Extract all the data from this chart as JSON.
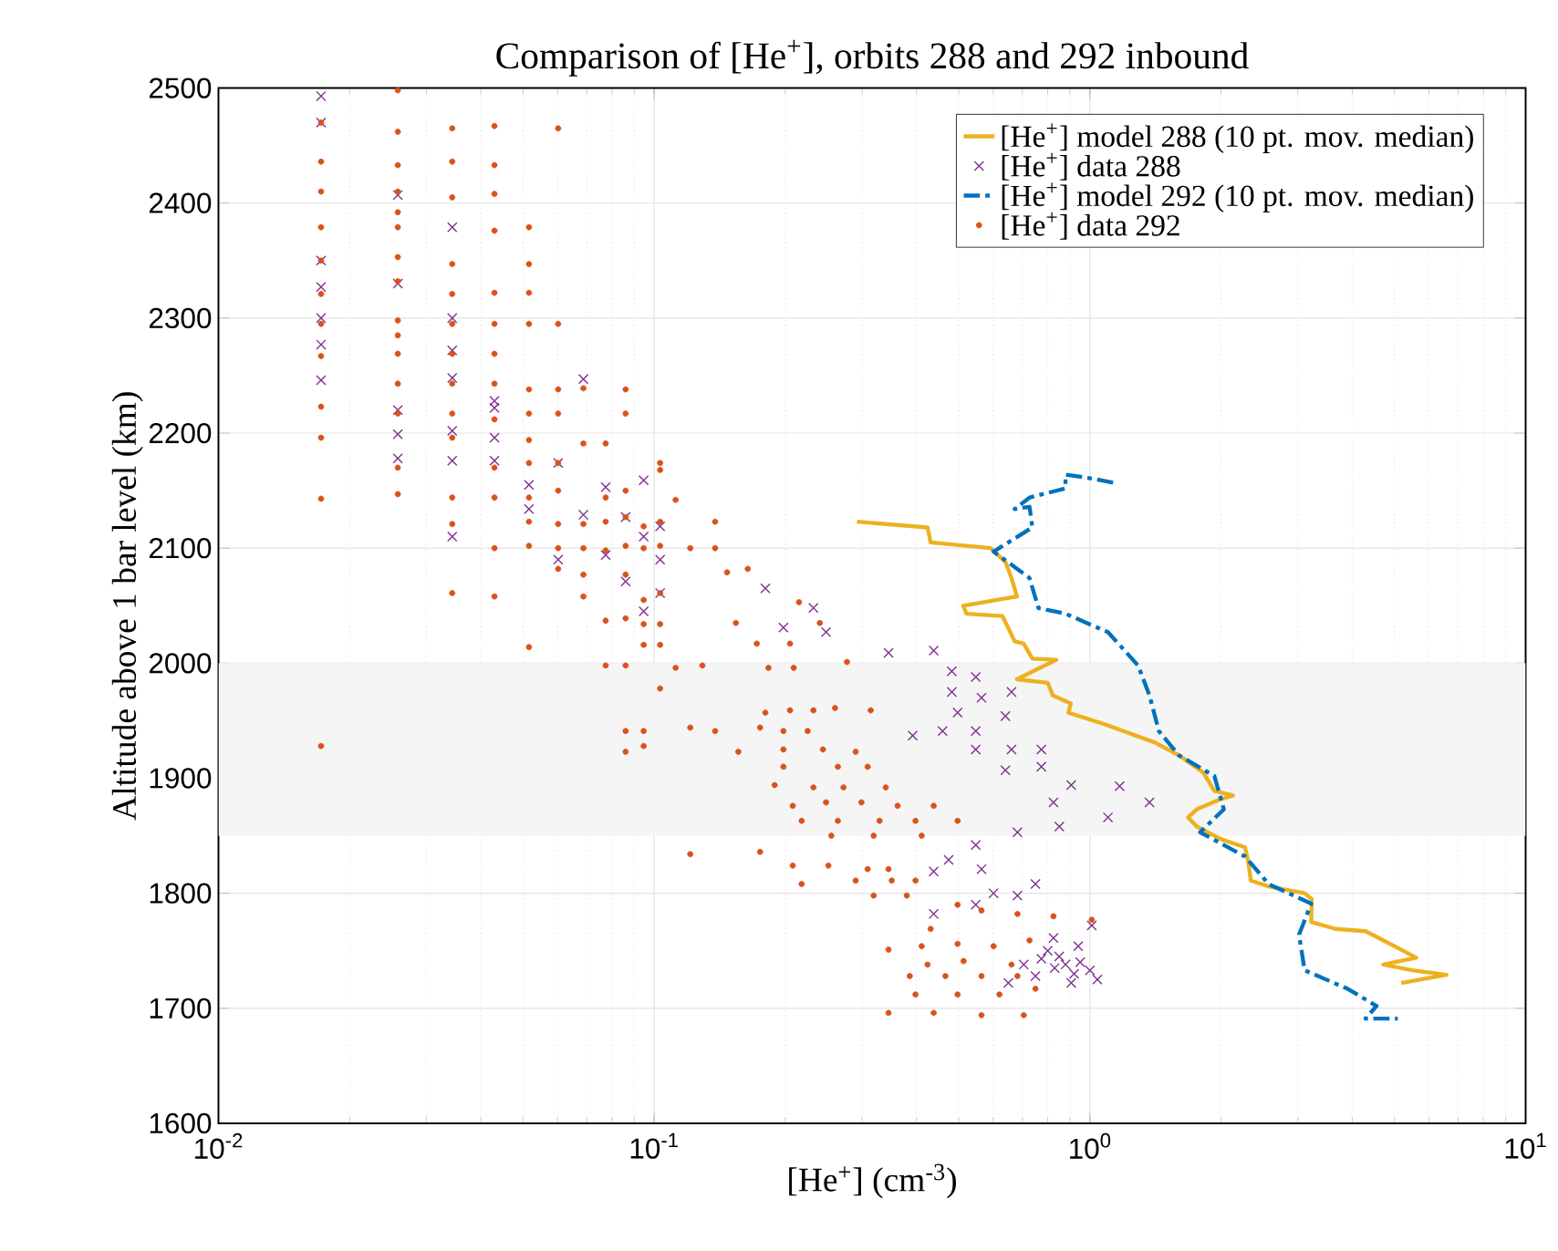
{
  "chart_data": {
    "type": "scatter",
    "title": "Comparison of [He$^{+}$], orbits 288 and 292 inbound",
    "xlabel": "[He$^{+}$] (cm$^{-3}$)",
    "ylabel": "Altitude above 1 bar level (km)",
    "log": "x",
    "xlim": [
      0.01,
      10
    ],
    "ylim": [
      1600,
      2500
    ],
    "xticks": [
      {
        "value": 0.01,
        "label": "10$^{-2}$"
      },
      {
        "value": 0.1,
        "label": "10$^{-1}$"
      },
      {
        "value": 1,
        "label": "10$^{0}$"
      },
      {
        "value": 10,
        "label": "10$^{1}$"
      }
    ],
    "yticks": [
      1600,
      1700,
      1800,
      1900,
      2000,
      2100,
      2200,
      2300,
      2400,
      2500
    ],
    "grid": true,
    "legend": "top right",
    "bands": [
      {
        "axis": "y",
        "from": 1850,
        "to": 2000,
        "color": "#f5f5f5"
      }
    ],
    "series": [
      {
        "name": "[He$^{+}$] model 288 (10 pt. mov. median)",
        "type": "line",
        "color": "#edb120",
        "line_style": "solid",
        "x": [
          0.292,
          0.424,
          0.431,
          0.592,
          0.64,
          0.661,
          0.68,
          0.512,
          0.521,
          0.63,
          0.672,
          0.705,
          0.738,
          0.838,
          0.68,
          0.8,
          0.822,
          0.904,
          0.893,
          1.08,
          1.41,
          1.6,
          1.82,
          1.93,
          2.13,
          1.97,
          1.76,
          1.68,
          1.76,
          2.0,
          2.27,
          2.31,
          2.34,
          2.57,
          3.11,
          3.23,
          3.22,
          3.66,
          4.29,
          5.0,
          5.61,
          4.71,
          5.5,
          6.58,
          5.18
        ],
        "values": [
          2123,
          2118,
          2105,
          2100,
          2088,
          2074,
          2058,
          2050,
          2043,
          2041,
          2019,
          2017,
          2004,
          2003,
          1986,
          1983,
          1972,
          1965,
          1957,
          1947,
          1931,
          1920,
          1905,
          1889,
          1885,
          1881,
          1873,
          1866,
          1858,
          1847,
          1840,
          1827,
          1811,
          1806,
          1800,
          1795,
          1775,
          1769,
          1767,
          1754,
          1744,
          1738,
          1733,
          1729,
          1722
        ]
      },
      {
        "name": "[He$^{+}$] data 288",
        "color": "#7e2f8e",
        "marker": "cross",
        "x": [
          0.0172,
          0.0172,
          0.0172,
          0.0172,
          0.0172,
          0.0172,
          0.0172,
          0.0258,
          0.0258,
          0.0258,
          0.0258,
          0.0258,
          0.0344,
          0.0344,
          0.0344,
          0.0344,
          0.0344,
          0.0344,
          0.0344,
          0.043,
          0.043,
          0.043,
          0.043,
          0.0516,
          0.0516,
          0.0602,
          0.0602,
          0.0688,
          0.0688,
          0.0774,
          0.0774,
          0.086,
          0.086,
          0.0946,
          0.0946,
          0.0946,
          0.1032,
          0.1032,
          0.1032,
          0.18,
          0.232,
          0.198,
          0.248,
          0.345,
          0.438,
          0.482,
          0.547,
          0.661,
          0.482,
          0.564,
          0.497,
          0.64,
          0.392,
          0.459,
          0.547,
          0.547,
          0.661,
          0.64,
          0.774,
          0.774,
          0.906,
          1.17,
          1.37,
          1.1,
          0.825,
          0.851,
          0.682,
          0.547,
          0.474,
          0.438,
          0.564,
          0.75,
          0.601,
          0.682,
          0.438,
          0.547,
          0.825,
          0.94,
          0.774,
          0.879,
          1.0,
          0.75,
          0.906,
          1.04,
          0.705,
          1.01,
          0.65,
          0.85,
          0.95,
          0.8,
          0.92,
          0.83
        ],
        "values": [
          2493,
          2470,
          2350,
          2327,
          2300,
          2277,
          2246,
          2407,
          2330,
          2220,
          2199,
          2178,
          2379,
          2300,
          2272,
          2248,
          2202,
          2176,
          2110,
          2228,
          2222,
          2196,
          2176,
          2155,
          2134,
          2174,
          2090,
          2247,
          2129,
          2153,
          2094,
          2127,
          2071,
          2159,
          2110,
          2045,
          2119,
          2090,
          2061,
          2065,
          2048,
          2031,
          2027,
          2009,
          2011,
          1993,
          1988,
          1975,
          1975,
          1970,
          1957,
          1954,
          1937,
          1941,
          1941,
          1925,
          1925,
          1907,
          1925,
          1910,
          1894,
          1893,
          1879,
          1866,
          1879,
          1858,
          1853,
          1842,
          1829,
          1819,
          1821,
          1808,
          1800,
          1798,
          1782,
          1790,
          1761,
          1754,
          1743,
          1738,
          1733,
          1728,
          1722,
          1725,
          1738,
          1772,
          1722,
          1745,
          1740,
          1750,
          1730,
          1735
        ]
      },
      {
        "name": "[He$^{+}$] model 292 (10 pt. mov. median)",
        "type": "line",
        "color": "#0072bd",
        "line_style": "dashdot",
        "x": [
          1.13,
          1.03,
          0.879,
          0.879,
          0.727,
          0.672,
          0.727,
          0.738,
          0.601,
          0.727,
          0.762,
          0.879,
          1.1,
          1.29,
          1.37,
          1.44,
          1.6,
          1.93,
          2.03,
          1.79,
          2.27,
          2.57,
          3.22,
          3.02,
          3.11,
          3.9,
          4.55,
          4.29,
          5.09
        ],
        "values": [
          2157,
          2160,
          2164,
          2152,
          2144,
          2134,
          2136,
          2118,
          2097,
          2074,
          2048,
          2043,
          2027,
          1998,
          1972,
          1941,
          1920,
          1902,
          1873,
          1853,
          1832,
          1808,
          1791,
          1764,
          1733,
          1717,
          1702,
          1691,
          1691
        ]
      },
      {
        "name": "[He$^{+}$] data 292",
        "color": "#d95319",
        "marker": "circle",
        "x": [
          0.0172,
          0.0172,
          0.0172,
          0.0172,
          0.0172,
          0.0172,
          0.0172,
          0.0172,
          0.0172,
          0.0172,
          0.0172,
          0.0172,
          0.0258,
          0.0258,
          0.0258,
          0.0258,
          0.0258,
          0.0258,
          0.0258,
          0.0258,
          0.0258,
          0.0258,
          0.0258,
          0.0258,
          0.0258,
          0.0258,
          0.0258,
          0.0344,
          0.0344,
          0.0344,
          0.0344,
          0.0344,
          0.0344,
          0.0344,
          0.0344,
          0.0344,
          0.0344,
          0.0344,
          0.0344,
          0.0344,
          0.043,
          0.043,
          0.043,
          0.043,
          0.043,
          0.043,
          0.043,
          0.043,
          0.043,
          0.043,
          0.043,
          0.043,
          0.043,
          0.0516,
          0.0516,
          0.0516,
          0.0516,
          0.0516,
          0.0516,
          0.0516,
          0.0516,
          0.0516,
          0.0516,
          0.0516,
          0.0516,
          0.0602,
          0.0602,
          0.0602,
          0.0602,
          0.0602,
          0.0602,
          0.0602,
          0.0602,
          0.0602,
          0.0688,
          0.0688,
          0.0688,
          0.0688,
          0.0688,
          0.0688,
          0.0774,
          0.0774,
          0.0774,
          0.0774,
          0.0774,
          0.0774,
          0.086,
          0.086,
          0.086,
          0.086,
          0.086,
          0.086,
          0.086,
          0.086,
          0.086,
          0.086,
          0.0946,
          0.0946,
          0.0946,
          0.0946,
          0.0946,
          0.0946,
          0.0946,
          0.1032,
          0.1032,
          0.1032,
          0.1032,
          0.1032,
          0.1032,
          0.1032,
          0.1032,
          0.112,
          0.138,
          0.121,
          0.138,
          0.164,
          0.147,
          0.154,
          0.172,
          0.205,
          0.215,
          0.24,
          0.183,
          0.209,
          0.277,
          0.129,
          0.112,
          0.121,
          0.138,
          0.156,
          0.18,
          0.205,
          0.232,
          0.26,
          0.314,
          0.175,
          0.198,
          0.225,
          0.198,
          0.244,
          0.29,
          0.198,
          0.264,
          0.309,
          0.189,
          0.232,
          0.272,
          0.34,
          0.208,
          0.248,
          0.299,
          0.362,
          0.438,
          0.218,
          0.264,
          0.329,
          0.398,
          0.497,
          0.255,
          0.319,
          0.411,
          0.121,
          0.175,
          0.208,
          0.251,
          0.309,
          0.345,
          0.218,
          0.29,
          0.351,
          0.398,
          0.319,
          0.38,
          0.497,
          0.431,
          0.564,
          0.682,
          0.825,
          1.01,
          0.345,
          0.411,
          0.497,
          0.601,
          0.727,
          0.386,
          0.466,
          0.564,
          0.682,
          0.398,
          0.497,
          0.62,
          0.75,
          0.345,
          0.438,
          0.564,
          0.705,
          0.513,
          0.661,
          0.424
        ],
        "values": [
          2470,
          2436,
          2410,
          2379,
          2350,
          2321,
          2295,
          2267,
          2223,
          2196,
          2143,
          1928,
          2498,
          2462,
          2433,
          2410,
          2392,
          2379,
          2353,
          2332,
          2298,
          2285,
          2269,
          2243,
          2217,
          2170,
          2147,
          2465,
          2436,
          2405,
          2347,
          2321,
          2295,
          2269,
          2243,
          2217,
          2196,
          2144,
          2121,
          2061,
          2467,
          2433,
          2408,
          2376,
          2322,
          2295,
          2269,
          2243,
          2212,
          2170,
          2144,
          2100,
          2058,
          2379,
          2347,
          2322,
          2295,
          2238,
          2217,
          2194,
          2174,
          2144,
          2123,
          2102,
          2014,
          2465,
          2295,
          2238,
          2217,
          2174,
          2150,
          2121,
          2100,
          2082,
          2239,
          2191,
          2121,
          2100,
          2077,
          2058,
          2191,
          2123,
          2098,
          2037,
          1998,
          2144,
          2238,
          2217,
          2150,
          2127,
          2102,
          2077,
          2039,
          1998,
          1941,
          1923,
          2119,
          2100,
          2055,
          2034,
          2016,
          1941,
          1928,
          2174,
          2123,
          2102,
          2061,
          2034,
          2016,
          2168,
          1978,
          2142,
          2123,
          2100,
          2100,
          2082,
          2079,
          2035,
          2017,
          2017,
          2053,
          2035,
          1996,
          1996,
          2001,
          1998,
          1996,
          1944,
          1941,
          1923,
          1957,
          1959,
          1959,
          1961,
          1959,
          1944,
          1941,
          1941,
          1925,
          1925,
          1923,
          1910,
          1910,
          1910,
          1894,
          1892,
          1892,
          1892,
          1876,
          1879,
          1879,
          1876,
          1876,
          1863,
          1863,
          1863,
          1863,
          1863,
          1850,
          1850,
          1850,
          1834,
          1836,
          1824,
          1824,
          1821,
          1821,
          1808,
          1811,
          1811,
          1811,
          1798,
          1798,
          1790,
          1769,
          1785,
          1782,
          1780,
          1777,
          1751,
          1754,
          1756,
          1754,
          1759,
          1728,
          1728,
          1728,
          1728,
          1712,
          1712,
          1712,
          1717,
          1696,
          1696,
          1694,
          1694,
          1741,
          1738,
          1738
        ]
      }
    ]
  }
}
